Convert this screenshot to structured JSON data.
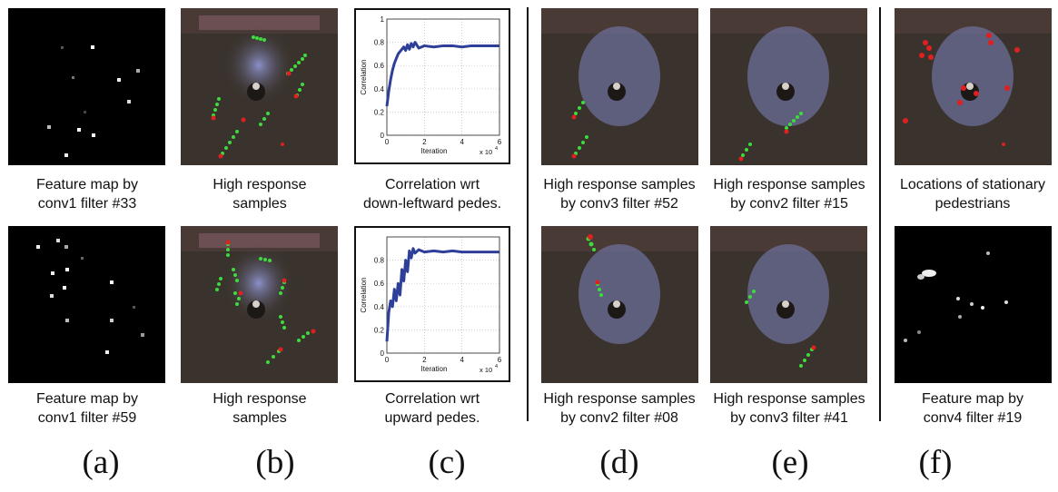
{
  "captions": {
    "a_top": [
      "Feature map by",
      "conv1 filter #33"
    ],
    "a_bottom": [
      "Feature map by",
      "conv1 filter #59"
    ],
    "b_top": [
      "High response",
      "samples"
    ],
    "b_bottom": [
      "High response",
      "samples"
    ],
    "c_top": [
      "Correlation wrt",
      "down-leftward pedes."
    ],
    "c_bottom": [
      "Correlation wrt",
      "upward pedes."
    ],
    "d_top": [
      "High response samples",
      "by conv3 filter #52"
    ],
    "d_bottom": [
      "High response samples",
      "by conv2 filter #08"
    ],
    "e_top": [
      "High response samples",
      "by conv2 filter #15"
    ],
    "e_bottom": [
      "High response samples",
      "by conv3 filter #41"
    ],
    "f_top": [
      "Locations of stationary",
      "pedestrians"
    ],
    "f_bottom": [
      "Feature map by",
      "conv4 filter #19"
    ]
  },
  "labels": [
    "(a)",
    "(b)",
    "(c)",
    "(d)",
    "(e)",
    "(f)"
  ],
  "colors": {
    "series": "#2e3f9a",
    "trail_green": "#3cdc3c",
    "trail_red": "#e02020",
    "floor": "#3a332d"
  },
  "chart_data": [
    {
      "type": "line",
      "title": "",
      "xlabel": "Iteration",
      "ylabel": "Correlation",
      "x_multiplier_label": "x 10",
      "x_multiplier_exp": "4",
      "xlim": [
        0,
        6
      ],
      "ylim": [
        0,
        1
      ],
      "xticks": [
        "0",
        "2",
        "4",
        "6"
      ],
      "yticks": [
        "0",
        "0.2",
        "0.4",
        "0.6",
        "0.8",
        "1"
      ],
      "grid": true,
      "series": [
        {
          "x": [
            0,
            0.1,
            0.2,
            0.3,
            0.4,
            0.5,
            0.6,
            0.7,
            0.8,
            0.9,
            1.0,
            1.1,
            1.2,
            1.3,
            1.4,
            1.5,
            1.7,
            2.0,
            2.5,
            3.0,
            3.5,
            4.0,
            4.5,
            5.0,
            5.5,
            6.0
          ],
          "y": [
            0.25,
            0.38,
            0.48,
            0.56,
            0.62,
            0.66,
            0.7,
            0.72,
            0.74,
            0.76,
            0.73,
            0.78,
            0.74,
            0.79,
            0.76,
            0.8,
            0.75,
            0.77,
            0.76,
            0.77,
            0.77,
            0.76,
            0.77,
            0.77,
            0.77,
            0.77
          ]
        }
      ]
    },
    {
      "type": "line",
      "title": "",
      "xlabel": "Iteration",
      "ylabel": "Correlation",
      "x_multiplier_label": "x 10",
      "x_multiplier_exp": "4",
      "xlim": [
        0,
        6
      ],
      "ylim": [
        0,
        1
      ],
      "xticks": [
        "0",
        "2",
        "4",
        "6"
      ],
      "yticks": [
        "0",
        "0.2",
        "0.4",
        "0.6",
        "0.8"
      ],
      "grid": true,
      "series": [
        {
          "x": [
            0,
            0.1,
            0.2,
            0.3,
            0.4,
            0.5,
            0.6,
            0.7,
            0.8,
            0.9,
            1.0,
            1.1,
            1.2,
            1.3,
            1.4,
            1.5,
            1.7,
            2.0,
            2.5,
            3.0,
            3.5,
            4.0,
            4.5,
            5.0,
            5.5,
            6.0
          ],
          "y": [
            0.1,
            0.35,
            0.45,
            0.4,
            0.55,
            0.45,
            0.6,
            0.5,
            0.72,
            0.62,
            0.8,
            0.7,
            0.88,
            0.82,
            0.9,
            0.86,
            0.89,
            0.87,
            0.88,
            0.87,
            0.88,
            0.87,
            0.87,
            0.87,
            0.87,
            0.87
          ]
        }
      ]
    }
  ]
}
